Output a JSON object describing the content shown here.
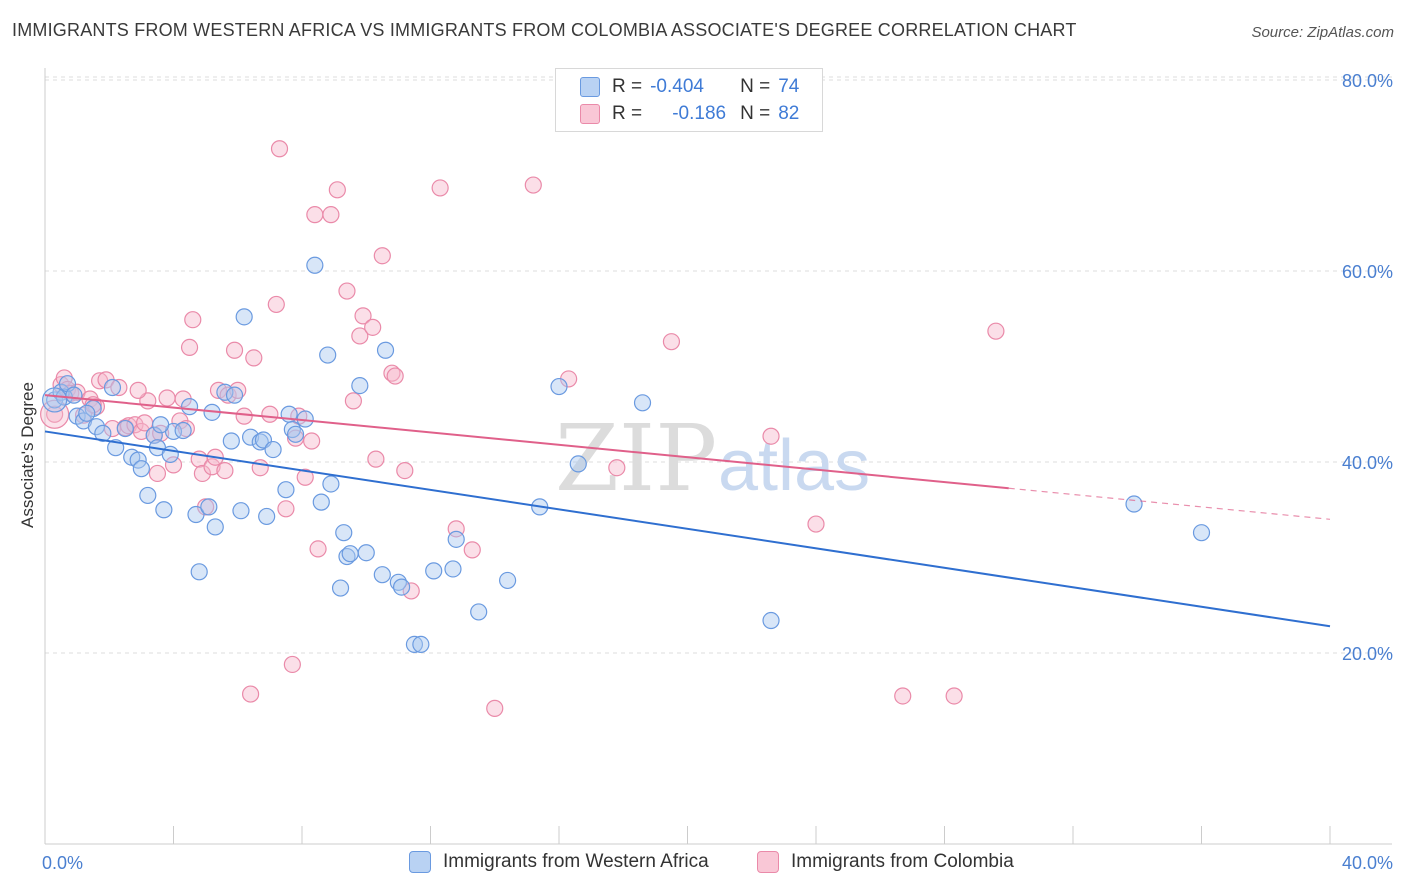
{
  "title": "IMMIGRANTS FROM WESTERN AFRICA VS IMMIGRANTS FROM COLOMBIA ASSOCIATE'S DEGREE CORRELATION CHART",
  "source": "Source: ZipAtlas.com",
  "watermark": {
    "zip": "ZIP",
    "atlas": "atlas"
  },
  "colors": {
    "blue_fill": "#a9c7f0",
    "blue_stroke": "#6a9ae0",
    "blue_line": "#2f6fd0",
    "pink_fill": "#f6b8cc",
    "pink_stroke": "#ea8aa9",
    "pink_line": "#e0608a",
    "accent_text": "#3f7bd6"
  },
  "legend": {
    "rows": [
      {
        "r_label": "R =",
        "r_value": "-0.404",
        "n_label": "N =",
        "n_value": "74"
      },
      {
        "r_label": "R =",
        "r_value": "-0.186",
        "n_label": "N =",
        "n_value": "82"
      }
    ]
  },
  "bottom_legend": [
    "Immigrants from Western Africa",
    "Immigrants from Colombia"
  ],
  "chart_data": {
    "type": "scatter",
    "title": "IMMIGRANTS FROM WESTERN AFRICA VS IMMIGRANTS FROM COLOMBIA ASSOCIATE'S DEGREE CORRELATION CHART",
    "xlabel": "",
    "ylabel": "Associate's Degree",
    "xlim": [
      0,
      40
    ],
    "ylim": [
      0,
      80
    ],
    "x_tick_labels": [
      "0.0%",
      "40.0%"
    ],
    "y_ticks": [
      20,
      40,
      60,
      80
    ],
    "y_tick_labels": [
      "20.0%",
      "40.0%",
      "60.0%",
      "80.0%"
    ],
    "grid": true,
    "legend_position": "top-center",
    "series": [
      {
        "name": "Immigrants from Western Africa",
        "r": -0.404,
        "n": 74,
        "trend": {
          "x0": 0,
          "y0": 43.2,
          "x1": 40,
          "y1": 22.8,
          "dashed_from": null
        },
        "points": [
          [
            0.3,
            46.5
          ],
          [
            0.5,
            47.3
          ],
          [
            0.6,
            46.8
          ],
          [
            0.7,
            48.2
          ],
          [
            0.9,
            47.0
          ],
          [
            1.0,
            44.8
          ],
          [
            1.2,
            44.3
          ],
          [
            1.5,
            45.6
          ],
          [
            1.6,
            43.7
          ],
          [
            1.8,
            43.0
          ],
          [
            2.1,
            47.8
          ],
          [
            2.2,
            41.5
          ],
          [
            2.5,
            43.5
          ],
          [
            2.7,
            40.5
          ],
          [
            2.9,
            40.2
          ],
          [
            3.0,
            39.3
          ],
          [
            3.2,
            36.5
          ],
          [
            3.4,
            42.8
          ],
          [
            3.5,
            41.5
          ],
          [
            3.7,
            35.0
          ],
          [
            3.9,
            40.8
          ],
          [
            4.0,
            43.2
          ],
          [
            4.3,
            43.3
          ],
          [
            4.5,
            45.8
          ],
          [
            4.7,
            34.5
          ],
          [
            4.8,
            28.5
          ],
          [
            5.1,
            35.3
          ],
          [
            5.2,
            45.2
          ],
          [
            5.3,
            33.2
          ],
          [
            5.6,
            47.3
          ],
          [
            5.8,
            42.2
          ],
          [
            5.9,
            47.0
          ],
          [
            6.1,
            34.9
          ],
          [
            6.2,
            55.2
          ],
          [
            6.4,
            42.6
          ],
          [
            6.7,
            42.1
          ],
          [
            6.8,
            42.3
          ],
          [
            6.9,
            34.3
          ],
          [
            7.1,
            41.3
          ],
          [
            7.5,
            37.1
          ],
          [
            7.6,
            45.0
          ],
          [
            7.7,
            43.4
          ],
          [
            7.8,
            42.9
          ],
          [
            8.1,
            44.5
          ],
          [
            8.4,
            60.6
          ],
          [
            8.6,
            35.8
          ],
          [
            8.8,
            51.2
          ],
          [
            8.9,
            37.7
          ],
          [
            9.2,
            26.8
          ],
          [
            9.3,
            32.6
          ],
          [
            9.4,
            30.1
          ],
          [
            9.5,
            30.4
          ],
          [
            9.8,
            48.0
          ],
          [
            10.0,
            30.5
          ],
          [
            10.5,
            28.2
          ],
          [
            10.6,
            51.7
          ],
          [
            11.0,
            27.4
          ],
          [
            11.1,
            26.9
          ],
          [
            11.5,
            20.9
          ],
          [
            11.7,
            20.9
          ],
          [
            12.1,
            28.6
          ],
          [
            12.7,
            28.8
          ],
          [
            12.8,
            31.9
          ],
          [
            13.5,
            24.3
          ],
          [
            14.4,
            27.6
          ],
          [
            15.4,
            35.3
          ],
          [
            16.0,
            47.9
          ],
          [
            16.6,
            39.8
          ],
          [
            18.6,
            46.2
          ],
          [
            22.6,
            23.4
          ],
          [
            33.9,
            35.6
          ],
          [
            36.0,
            32.6
          ],
          [
            1.3,
            45.1
          ],
          [
            3.6,
            43.9
          ]
        ]
      },
      {
        "name": "Immigrants from Colombia",
        "r": -0.186,
        "n": 82,
        "trend": {
          "x0": 0,
          "y0": 47.0,
          "x1": 40,
          "y1": 34.0,
          "dashed_from": 30.0
        },
        "points": [
          [
            0.3,
            45.0
          ],
          [
            0.5,
            48.1
          ],
          [
            0.6,
            48.8
          ],
          [
            0.7,
            47.6
          ],
          [
            0.8,
            47.2
          ],
          [
            1.0,
            47.3
          ],
          [
            1.2,
            44.9
          ],
          [
            1.4,
            46.6
          ],
          [
            1.6,
            45.8
          ],
          [
            1.7,
            48.5
          ],
          [
            1.9,
            48.6
          ],
          [
            2.1,
            43.5
          ],
          [
            2.3,
            47.8
          ],
          [
            2.5,
            43.6
          ],
          [
            2.6,
            43.8
          ],
          [
            2.8,
            43.9
          ],
          [
            3.0,
            43.2
          ],
          [
            3.1,
            44.1
          ],
          [
            3.2,
            46.4
          ],
          [
            3.4,
            42.8
          ],
          [
            3.5,
            38.8
          ],
          [
            3.6,
            43.0
          ],
          [
            3.8,
            46.7
          ],
          [
            4.0,
            39.7
          ],
          [
            4.2,
            44.3
          ],
          [
            4.3,
            46.6
          ],
          [
            4.4,
            43.5
          ],
          [
            4.5,
            52.0
          ],
          [
            4.6,
            54.9
          ],
          [
            4.8,
            40.3
          ],
          [
            4.9,
            38.8
          ],
          [
            5.0,
            35.3
          ],
          [
            5.2,
            39.5
          ],
          [
            5.4,
            47.5
          ],
          [
            5.6,
            39.1
          ],
          [
            5.7,
            47.0
          ],
          [
            5.9,
            51.7
          ],
          [
            6.0,
            47.5
          ],
          [
            6.2,
            44.8
          ],
          [
            6.4,
            15.7
          ],
          [
            6.5,
            50.9
          ],
          [
            6.7,
            39.4
          ],
          [
            7.0,
            45.0
          ],
          [
            7.2,
            56.5
          ],
          [
            7.3,
            72.8
          ],
          [
            7.5,
            35.1
          ],
          [
            7.7,
            18.8
          ],
          [
            7.8,
            42.5
          ],
          [
            7.9,
            44.8
          ],
          [
            8.1,
            38.4
          ],
          [
            8.3,
            42.2
          ],
          [
            8.4,
            65.9
          ],
          [
            8.5,
            30.9
          ],
          [
            8.9,
            65.9
          ],
          [
            9.1,
            68.5
          ],
          [
            9.4,
            57.9
          ],
          [
            9.6,
            46.4
          ],
          [
            9.8,
            53.2
          ],
          [
            9.9,
            55.3
          ],
          [
            10.2,
            54.1
          ],
          [
            10.3,
            40.3
          ],
          [
            10.5,
            61.6
          ],
          [
            10.8,
            49.3
          ],
          [
            10.9,
            49.0
          ],
          [
            11.2,
            39.1
          ],
          [
            11.4,
            26.5
          ],
          [
            12.3,
            68.7
          ],
          [
            12.8,
            33.0
          ],
          [
            13.3,
            30.8
          ],
          [
            14.0,
            14.2
          ],
          [
            15.2,
            69.0
          ],
          [
            16.3,
            48.7
          ],
          [
            17.8,
            39.4
          ],
          [
            19.5,
            52.6
          ],
          [
            22.6,
            42.7
          ],
          [
            24.0,
            33.5
          ],
          [
            26.7,
            15.5
          ],
          [
            28.3,
            15.5
          ],
          [
            29.6,
            53.7
          ],
          [
            1.5,
            46.0
          ],
          [
            2.9,
            47.5
          ],
          [
            5.3,
            40.5
          ]
        ]
      }
    ]
  }
}
